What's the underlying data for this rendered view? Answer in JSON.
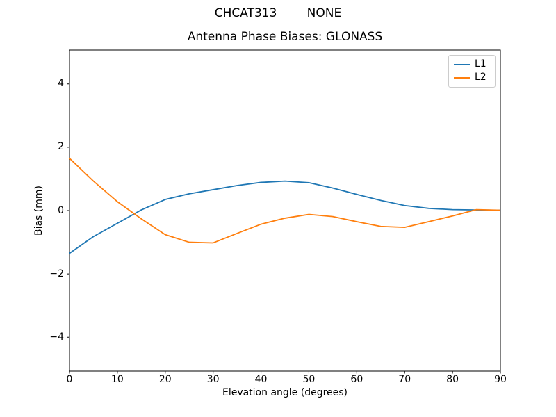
{
  "chart_data": {
    "type": "line",
    "suptitle": "CHCAT313        NONE",
    "title": "Antenna Phase Biases: GLONASS",
    "xlabel": "Elevation angle (degrees)",
    "ylabel": "Bias (mm)",
    "xlim": [
      0,
      90
    ],
    "ylim": [
      -5.07,
      5.07
    ],
    "xticks": [
      0,
      10,
      20,
      30,
      40,
      50,
      60,
      70,
      80,
      90
    ],
    "xtick_labels": [
      "0",
      "10",
      "20",
      "30",
      "40",
      "50",
      "60",
      "70",
      "80",
      "90"
    ],
    "yticks": [
      -4,
      -2,
      0,
      2,
      4
    ],
    "ytick_labels": [
      "−4",
      "−2",
      "0",
      "2",
      "4"
    ],
    "grid": false,
    "legend": {
      "position": "upper right",
      "entries": [
        "L1",
        "L2"
      ]
    },
    "x": [
      0,
      5,
      10,
      15,
      20,
      25,
      30,
      35,
      40,
      45,
      50,
      55,
      60,
      65,
      70,
      75,
      80,
      85,
      90
    ],
    "series": [
      {
        "name": "L1",
        "color": "#1f77b4",
        "values": [
          -1.35,
          -0.82,
          -0.4,
          0.02,
          0.35,
          0.53,
          0.66,
          0.79,
          0.89,
          0.93,
          0.88,
          0.71,
          0.51,
          0.32,
          0.16,
          0.07,
          0.03,
          0.02,
          0.01
        ]
      },
      {
        "name": "L2",
        "color": "#ff7f0e",
        "values": [
          1.65,
          0.93,
          0.28,
          -0.26,
          -0.76,
          -1.0,
          -1.02,
          -0.72,
          -0.43,
          -0.24,
          -0.12,
          -0.19,
          -0.35,
          -0.5,
          -0.53,
          -0.35,
          -0.17,
          0.03,
          0.01
        ]
      }
    ],
    "axis_color": "#000000",
    "background_color": "#ffffff"
  }
}
